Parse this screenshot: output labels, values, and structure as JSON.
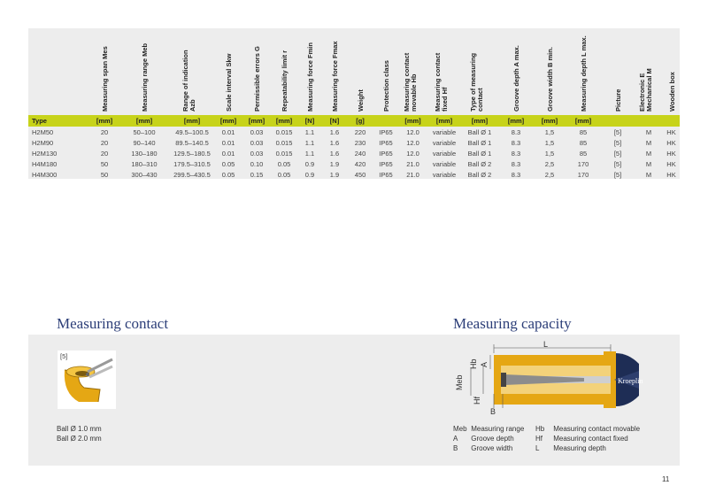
{
  "table": {
    "headers": [
      {
        "text": "",
        "sub": ""
      },
      {
        "text": "Measuring span Mes",
        "sub": ""
      },
      {
        "text": "Measuring range Meb",
        "sub": ""
      },
      {
        "text": "Range of indication",
        "sub": "Azb"
      },
      {
        "text": "Scale interval Skw",
        "sub": ""
      },
      {
        "text": "Permissible errors G",
        "sub": ""
      },
      {
        "text": "Repeatability limit r",
        "sub": ""
      },
      {
        "text": "Measuring force Fmin",
        "sub": ""
      },
      {
        "text": "Measuring force Fmax",
        "sub": ""
      },
      {
        "text": "Weight",
        "sub": ""
      },
      {
        "text": "Protection class",
        "sub": ""
      },
      {
        "text": "Measuring contact",
        "sub": "movable Hb"
      },
      {
        "text": "Measuring contact",
        "sub": "fixed Hf"
      },
      {
        "text": "Type of measuring",
        "sub": "contact"
      },
      {
        "text": "Groove depth A max.",
        "sub": ""
      },
      {
        "text": "Groove width B min.",
        "sub": ""
      },
      {
        "text": "Measuring depth L max.",
        "sub": ""
      },
      {
        "text": "Picture",
        "sub": ""
      },
      {
        "text": "Electronic E",
        "sub": "Mechanical M"
      },
      {
        "text": "Wooden box",
        "sub": ""
      }
    ],
    "units": [
      "Type",
      "[mm]",
      "[mm]",
      "[mm]",
      "[mm]",
      "[mm]",
      "[mm]",
      "[N]",
      "[N]",
      "[g]",
      "",
      "[mm]",
      "[mm]",
      "[mm]",
      "[mm]",
      "[mm]",
      "[mm]",
      "",
      "",
      ""
    ],
    "rows": [
      [
        "H2M50",
        "20",
        "50–100",
        "49.5–100.5",
        "0.01",
        "0.03",
        "0.015",
        "1.1",
        "1.6",
        "220",
        "IP65",
        "12.0",
        "variable",
        "Ball Ø 1",
        "8.3",
        "1,5",
        "85",
        "[5]",
        "M",
        "HK"
      ],
      [
        "H2M90",
        "20",
        "90–140",
        "89.5–140.5",
        "0.01",
        "0.03",
        "0.015",
        "1.1",
        "1.6",
        "230",
        "IP65",
        "12.0",
        "variable",
        "Ball Ø 1",
        "8.3",
        "1,5",
        "85",
        "[5]",
        "M",
        "HK"
      ],
      [
        "H2M130",
        "20",
        "130–180",
        "129.5–180.5",
        "0.01",
        "0.03",
        "0.015",
        "1.1",
        "1.6",
        "240",
        "IP65",
        "12.0",
        "variable",
        "Ball Ø 1",
        "8.3",
        "1,5",
        "85",
        "[5]",
        "M",
        "HK"
      ],
      [
        "H4M180",
        "50",
        "180–310",
        "179.5–310.5",
        "0.05",
        "0.10",
        "0.05",
        "0.9",
        "1.9",
        "420",
        "IP65",
        "21.0",
        "variable",
        "Ball Ø 2",
        "8.3",
        "2,5",
        "170",
        "[5]",
        "M",
        "HK"
      ],
      [
        "H4M300",
        "50",
        "300–430",
        "299.5–430.5",
        "0.05",
        "0.15",
        "0.05",
        "0.9",
        "1.9",
        "450",
        "IP65",
        "21.0",
        "variable",
        "Ball Ø 2",
        "8.3",
        "2,5",
        "170",
        "[5]",
        "M",
        "HK"
      ]
    ]
  },
  "measuring_contact": {
    "title": "Measuring contact",
    "picture_label": "[5]",
    "balls": [
      "Ball Ø 1.0 mm",
      "Ball Ø 2.0 mm"
    ]
  },
  "measuring_capacity": {
    "title": "Measuring capacity",
    "diagram_labels": {
      "L": "L",
      "Hb": "Hb",
      "A": "A",
      "Meb": "Meb",
      "Hf": "Hf",
      "B": "B",
      "brand": "Kroeplin"
    },
    "legend": [
      {
        "k": "Meb",
        "v": "Measuring range"
      },
      {
        "k": "A",
        "v": "Groove depth"
      },
      {
        "k": "B",
        "v": "Groove width"
      },
      {
        "k": "Hb",
        "v": "Measuring contact movable"
      },
      {
        "k": "Hf",
        "v": "Measuring contact fixed"
      },
      {
        "k": "L",
        "v": "Measuring depth"
      }
    ]
  },
  "page_number": "11",
  "colors": {
    "accent": "#c7d31a",
    "title": "#2c3e78",
    "panel": "#ededed",
    "gold": "#e5a714"
  }
}
